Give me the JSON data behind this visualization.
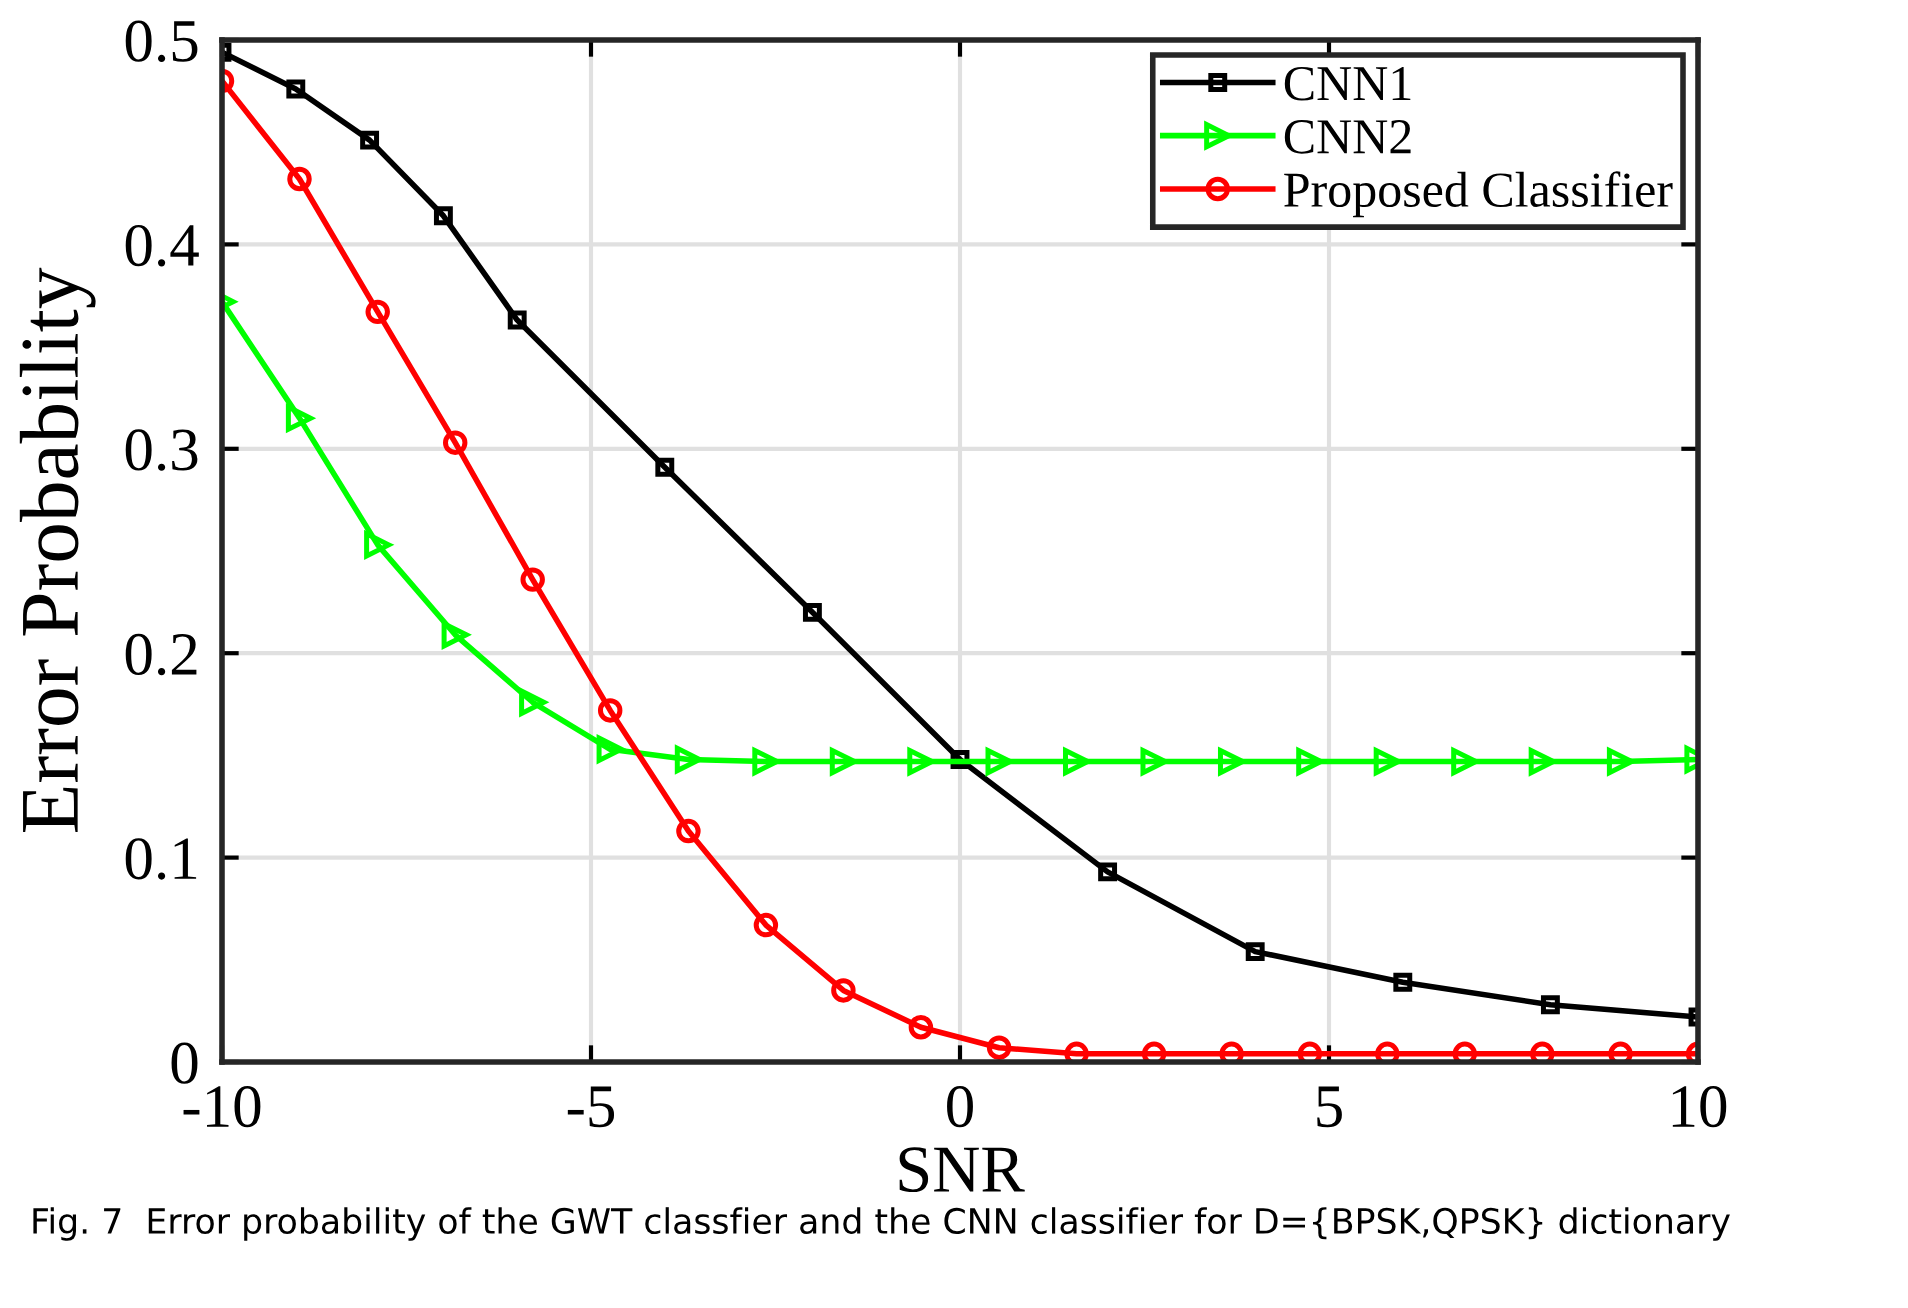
{
  "chart_data": {
    "type": "line",
    "xlabel": "SNR",
    "ylabel": "Error Probability",
    "xlim": [
      -10,
      10
    ],
    "xticks": [
      -10,
      -5,
      0,
      5,
      10
    ],
    "ylim": [
      0,
      0.5
    ],
    "yticks": [
      0,
      0.1,
      0.2,
      0.3,
      0.4,
      0.5
    ],
    "grid": true,
    "legend": "top right",
    "annotations": [
      "Fig. 7  Error probability of the GWT classfier and the CNN classifier for D={BPSK,QPSK} dictionary"
    ],
    "series": [
      {
        "name": "CNN1",
        "color": "#000000",
        "marker": "square",
        "x": [
          -10,
          -9,
          -8,
          -7,
          -6,
          -4,
          -2,
          0,
          2,
          4,
          6,
          8,
          10
        ],
        "values": [
          0.494,
          0.476,
          0.451,
          0.414,
          0.363,
          0.291,
          0.22,
          0.148,
          0.093,
          0.054,
          0.039,
          0.028,
          0.022
        ]
      },
      {
        "name": "CNN2",
        "color": "#00ff00",
        "marker": "triangle",
        "x": [
          -10,
          -8.95,
          -7.89,
          -6.84,
          -5.79,
          -4.74,
          -3.68,
          -2.63,
          -1.58,
          -0.53,
          0.53,
          1.58,
          2.63,
          3.68,
          4.74,
          5.79,
          6.84,
          7.89,
          8.95,
          10
        ],
        "values": [
          0.372,
          0.315,
          0.253,
          0.209,
          0.176,
          0.153,
          0.148,
          0.147,
          0.147,
          0.147,
          0.147,
          0.147,
          0.147,
          0.147,
          0.147,
          0.147,
          0.147,
          0.147,
          0.147,
          0.148
        ]
      },
      {
        "name": "Proposed Classifier",
        "color": "#ff0000",
        "marker": "circle",
        "x": [
          -10,
          -8.95,
          -7.89,
          -6.84,
          -5.79,
          -4.74,
          -3.68,
          -2.63,
          -1.58,
          -0.53,
          0.53,
          1.58,
          2.63,
          3.68,
          4.74,
          5.79,
          6.84,
          7.89,
          8.95,
          10
        ],
        "values": [
          0.48,
          0.432,
          0.367,
          0.303,
          0.236,
          0.172,
          0.113,
          0.067,
          0.035,
          0.017,
          0.007,
          0.004,
          0.004,
          0.004,
          0.004,
          0.004,
          0.004,
          0.004,
          0.004,
          0.004
        ]
      }
    ]
  }
}
